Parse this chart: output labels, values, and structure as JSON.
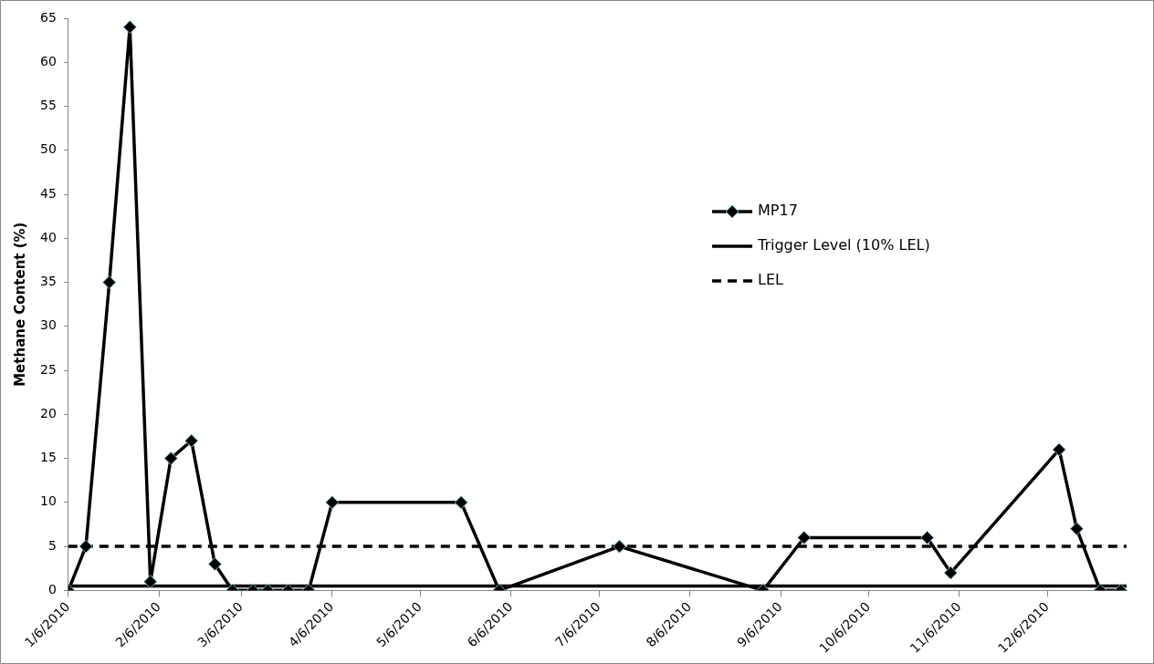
{
  "chart_data": {
    "type": "line",
    "ylabel": "Methane Content (%)",
    "xlim": [
      "2010-01-06",
      "2011-01-02"
    ],
    "xticks": [
      {
        "value": "2010-01-06",
        "label": "1/6/2010"
      },
      {
        "value": "2010-02-06",
        "label": "2/6/2010"
      },
      {
        "value": "2010-03-06",
        "label": "3/6/2010"
      },
      {
        "value": "2010-04-06",
        "label": "4/6/2010"
      },
      {
        "value": "2010-05-06",
        "label": "5/6/2010"
      },
      {
        "value": "2010-06-06",
        "label": "6/6/2010"
      },
      {
        "value": "2010-07-06",
        "label": "7/6/2010"
      },
      {
        "value": "2010-08-06",
        "label": "8/6/2010"
      },
      {
        "value": "2010-09-06",
        "label": "9/6/2010"
      },
      {
        "value": "2010-10-06",
        "label": "10/6/2010"
      },
      {
        "value": "2010-11-06",
        "label": "11/6/2010"
      },
      {
        "value": "2010-12-06",
        "label": "12/6/2010"
      }
    ],
    "ylim": [
      0,
      65
    ],
    "yticks": [
      0,
      5,
      10,
      15,
      20,
      25,
      30,
      35,
      40,
      45,
      50,
      55,
      60,
      65
    ],
    "x": [
      "2010-01-06",
      "2010-01-12",
      "2010-01-20",
      "2010-01-27",
      "2010-02-03",
      "2010-02-10",
      "2010-02-17",
      "2010-02-25",
      "2010-03-03",
      "2010-03-10",
      "2010-03-15",
      "2010-03-22",
      "2010-03-29",
      "2010-04-06",
      "2010-05-20",
      "2010-06-02",
      "2010-07-13",
      "2010-08-31",
      "2010-09-14",
      "2010-10-26",
      "2010-11-03",
      "2010-12-10",
      "2010-12-16",
      "2010-12-24",
      "2010-12-31"
    ],
    "series": [
      {
        "name": "MP17",
        "color": "#000000",
        "values": [
          0,
          5,
          35,
          64,
          1,
          15,
          17,
          3,
          0,
          0,
          0,
          0,
          0,
          10,
          10,
          0,
          5,
          0,
          6,
          6,
          2,
          16,
          7,
          0,
          0
        ]
      }
    ],
    "ref_lines": [
      {
        "axis": "y",
        "value": 0.5,
        "label": "Trigger Level (10% LEL)",
        "color": "#000000",
        "line_style": "solid"
      },
      {
        "axis": "y",
        "value": 5,
        "label": "LEL",
        "color": "#000000",
        "line_style": "dashed"
      }
    ],
    "marker": "diamond",
    "grid": false,
    "legend": "right"
  }
}
